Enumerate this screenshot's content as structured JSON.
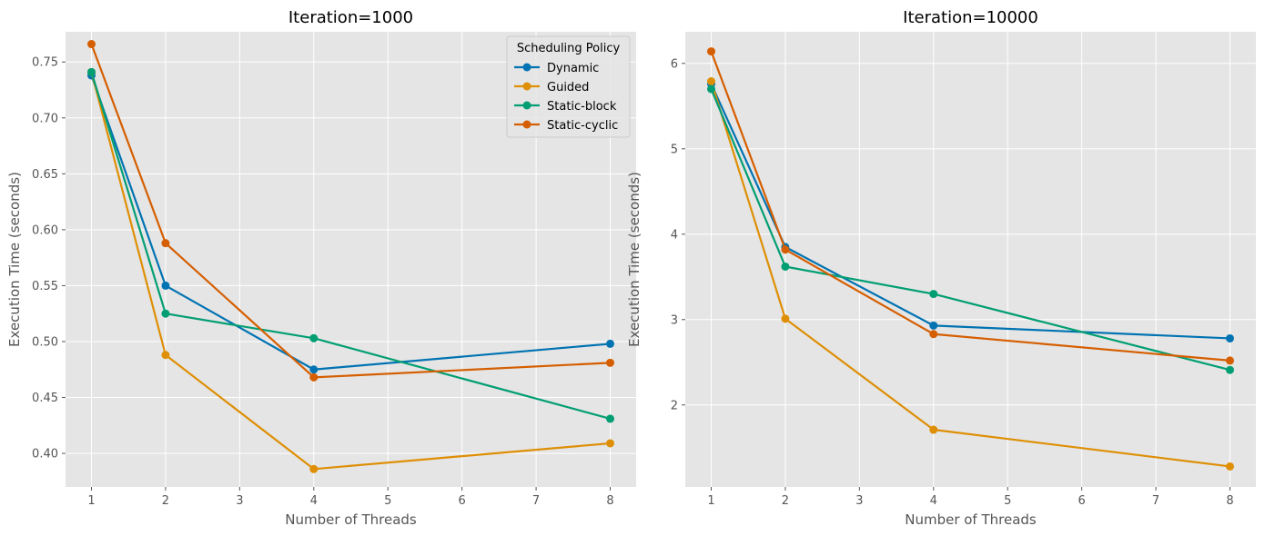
{
  "colors": {
    "plot_background": "#E5E5E5",
    "grid": "#FFFFFF",
    "text": "#555555",
    "Dynamic": "#0173B2",
    "Guided": "#DE8F05",
    "Static-block": "#029E73",
    "Static-cyclic": "#D55E00"
  },
  "legend": {
    "title": "Scheduling Policy",
    "entries": [
      "Dynamic",
      "Guided",
      "Static-block",
      "Static-cyclic"
    ]
  },
  "chart_data": [
    {
      "type": "line",
      "title": "Iteration=1000",
      "xlabel": "Number of Threads",
      "ylabel": "Execution Time (seconds)",
      "x": [
        1,
        2,
        4,
        8
      ],
      "xlim": [
        0.65,
        8.35
      ],
      "ylim": [
        0.37,
        0.777
      ],
      "xticks": [
        1,
        2,
        3,
        4,
        5,
        6,
        7,
        8
      ],
      "yticks": [
        0.4,
        0.45,
        0.5,
        0.55,
        0.6,
        0.65,
        0.7,
        0.75
      ],
      "ytick_labels": [
        "0.40",
        "0.45",
        "0.50",
        "0.55",
        "0.60",
        "0.65",
        "0.70",
        "0.75"
      ],
      "grid": true,
      "legend_position": "top-right",
      "series": [
        {
          "name": "Dynamic",
          "values": [
            0.738,
            0.55,
            0.475,
            0.498
          ]
        },
        {
          "name": "Guided",
          "values": [
            0.741,
            0.488,
            0.386,
            0.409
          ]
        },
        {
          "name": "Static-block",
          "values": [
            0.741,
            0.525,
            0.503,
            0.431
          ]
        },
        {
          "name": "Static-cyclic",
          "values": [
            0.766,
            0.588,
            0.468,
            0.481
          ]
        }
      ]
    },
    {
      "type": "line",
      "title": "Iteration=10000",
      "xlabel": "Number of Threads",
      "ylabel": "Execution Time (seconds)",
      "x": [
        1,
        2,
        4,
        8
      ],
      "xlim": [
        0.65,
        8.35
      ],
      "ylim": [
        1.04,
        6.37
      ],
      "xticks": [
        1,
        2,
        3,
        4,
        5,
        6,
        7,
        8
      ],
      "yticks": [
        2,
        3,
        4,
        5,
        6
      ],
      "ytick_labels": [
        "2",
        "3",
        "4",
        "5",
        "6"
      ],
      "grid": true,
      "legend_position": "none",
      "series": [
        {
          "name": "Dynamic",
          "values": [
            5.76,
            3.85,
            2.93,
            2.78
          ]
        },
        {
          "name": "Guided",
          "values": [
            5.79,
            3.01,
            1.71,
            1.28
          ]
        },
        {
          "name": "Static-block",
          "values": [
            5.7,
            3.62,
            3.3,
            2.41
          ]
        },
        {
          "name": "Static-cyclic",
          "values": [
            6.14,
            3.82,
            2.83,
            2.52
          ]
        }
      ]
    }
  ]
}
